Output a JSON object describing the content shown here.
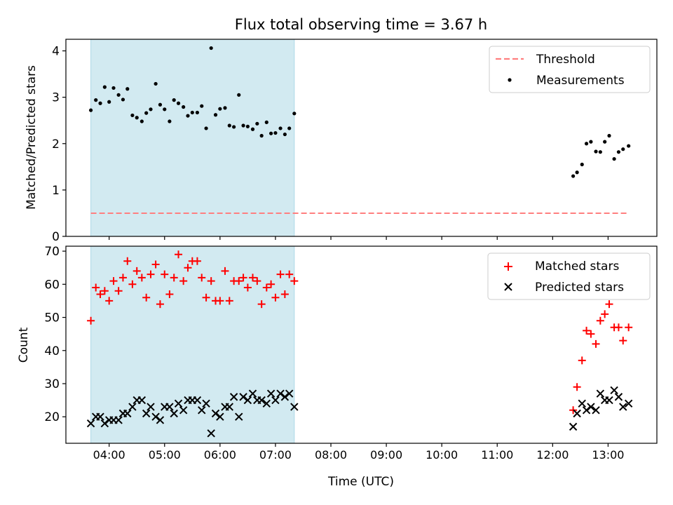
{
  "figure": {
    "title": "Flux total observing time = 3.67 h"
  },
  "chart_data": [
    {
      "type": "scatter",
      "ylabel": "Matched/Predicted stars",
      "xlabel": "",
      "x_unit": "hours (UTC)",
      "xlim": [
        3.22,
        13.88
      ],
      "ylim": [
        0,
        4.25
      ],
      "yticks": [
        0,
        1,
        2,
        3,
        4
      ],
      "shaded_span": {
        "x_start": 3.67,
        "x_end": 7.34,
        "color": "#add8e6"
      },
      "threshold": {
        "name": "Threshold",
        "y": 0.5,
        "x_start": 3.67,
        "x_end": 13.37,
        "color": "#ff7f7f",
        "style": "dashed"
      },
      "series": [
        {
          "name": "Measurements",
          "marker": "dot",
          "color": "#000000",
          "x": [
            3.67,
            3.76,
            3.84,
            3.92,
            4.0,
            4.08,
            4.17,
            4.25,
            4.33,
            4.42,
            4.5,
            4.59,
            4.67,
            4.75,
            4.84,
            4.92,
            5.0,
            5.09,
            5.17,
            5.25,
            5.34,
            5.42,
            5.5,
            5.59,
            5.67,
            5.75,
            5.84,
            5.92,
            6.0,
            6.09,
            6.17,
            6.25,
            6.34,
            6.42,
            6.5,
            6.59,
            6.67,
            6.75,
            6.84,
            6.92,
            7.0,
            7.09,
            7.17,
            7.25,
            7.34,
            12.37,
            12.44,
            12.53,
            12.61,
            12.69,
            12.78,
            12.86,
            12.94,
            13.02,
            13.11,
            13.19,
            13.27,
            13.37
          ],
          "y": [
            2.72,
            2.94,
            2.87,
            3.22,
            2.9,
            3.2,
            3.05,
            2.95,
            3.18,
            2.61,
            2.56,
            2.48,
            2.66,
            2.74,
            3.29,
            2.84,
            2.74,
            2.48,
            2.94,
            2.87,
            2.79,
            2.6,
            2.67,
            2.67,
            2.81,
            2.33,
            4.06,
            2.62,
            2.75,
            2.77,
            2.39,
            2.36,
            3.05,
            2.39,
            2.37,
            2.31,
            2.43,
            2.17,
            2.46,
            2.22,
            2.23,
            2.33,
            2.2,
            2.33,
            2.65,
            1.3,
            1.38,
            1.55,
            2.0,
            2.04,
            1.83,
            1.82,
            2.04,
            2.17,
            1.67,
            1.82,
            1.88,
            1.95
          ]
        }
      ],
      "legend": {
        "location": "upper right",
        "entries": [
          "Threshold",
          "Measurements"
        ]
      }
    },
    {
      "type": "scatter",
      "ylabel": "Count",
      "xlabel": "Time (UTC)",
      "x_unit": "hours (UTC)",
      "xlim": [
        3.22,
        13.88
      ],
      "ylim": [
        12,
        71.5
      ],
      "yticks": [
        20,
        30,
        40,
        50,
        60,
        70
      ],
      "xticks": [
        "04:00",
        "05:00",
        "06:00",
        "07:00",
        "08:00",
        "09:00",
        "10:00",
        "11:00",
        "12:00",
        "13:00"
      ],
      "xtick_values": [
        4,
        5,
        6,
        7,
        8,
        9,
        10,
        11,
        12,
        13
      ],
      "shaded_span": {
        "x_start": 3.67,
        "x_end": 7.34,
        "color": "#add8e6"
      },
      "series": [
        {
          "name": "Matched stars",
          "marker": "plus",
          "color": "#ff0000",
          "x": [
            3.67,
            3.76,
            3.84,
            3.92,
            4.0,
            4.08,
            4.17,
            4.25,
            4.33,
            4.42,
            4.5,
            4.59,
            4.67,
            4.75,
            4.84,
            4.92,
            5.0,
            5.09,
            5.17,
            5.25,
            5.34,
            5.42,
            5.5,
            5.59,
            5.67,
            5.75,
            5.84,
            5.92,
            6.0,
            6.09,
            6.17,
            6.25,
            6.34,
            6.42,
            6.5,
            6.59,
            6.67,
            6.75,
            6.84,
            6.92,
            7.0,
            7.09,
            7.17,
            7.25,
            7.34,
            12.37,
            12.44,
            12.53,
            12.61,
            12.69,
            12.78,
            12.86,
            12.94,
            13.02,
            13.11,
            13.19,
            13.27,
            13.37
          ],
          "y": [
            49,
            59,
            57,
            58,
            55,
            61,
            58,
            62,
            67,
            60,
            64,
            62,
            56,
            63,
            66,
            54,
            63,
            57,
            62,
            69,
            61,
            65,
            67,
            67,
            62,
            56,
            61,
            55,
            55,
            64,
            55,
            61,
            61,
            62,
            59,
            62,
            61,
            54,
            59,
            60,
            56,
            63,
            57,
            63,
            61,
            22,
            29,
            37,
            46,
            45,
            42,
            49,
            51,
            54,
            47,
            47,
            43,
            47
          ]
        },
        {
          "name": "Predicted stars",
          "marker": "x",
          "color": "#000000",
          "x": [
            3.67,
            3.76,
            3.84,
            3.92,
            4.0,
            4.08,
            4.17,
            4.25,
            4.33,
            4.42,
            4.5,
            4.59,
            4.67,
            4.75,
            4.84,
            4.92,
            5.0,
            5.09,
            5.17,
            5.25,
            5.34,
            5.42,
            5.5,
            5.59,
            5.67,
            5.75,
            5.84,
            5.92,
            6.0,
            6.09,
            6.17,
            6.25,
            6.34,
            6.42,
            6.5,
            6.59,
            6.67,
            6.75,
            6.84,
            6.92,
            7.0,
            7.09,
            7.17,
            7.25,
            7.34,
            12.37,
            12.44,
            12.53,
            12.61,
            12.69,
            12.78,
            12.86,
            12.94,
            13.02,
            13.11,
            13.19,
            13.27,
            13.37
          ],
          "y": [
            18,
            20,
            20,
            18,
            19,
            19,
            19,
            21,
            21,
            23,
            25,
            25,
            21,
            23,
            20,
            19,
            23,
            23,
            21,
            24,
            22,
            25,
            25,
            25,
            22,
            24,
            15,
            21,
            20,
            23,
            23,
            26,
            20,
            26,
            25,
            27,
            25,
            25,
            24,
            27,
            25,
            27,
            26,
            27,
            23,
            17,
            21,
            24,
            22,
            23,
            22,
            27,
            25,
            25,
            28,
            26,
            23,
            24
          ]
        }
      ],
      "legend": {
        "location": "upper right",
        "entries": [
          "Matched stars",
          "Predicted stars"
        ]
      }
    }
  ]
}
